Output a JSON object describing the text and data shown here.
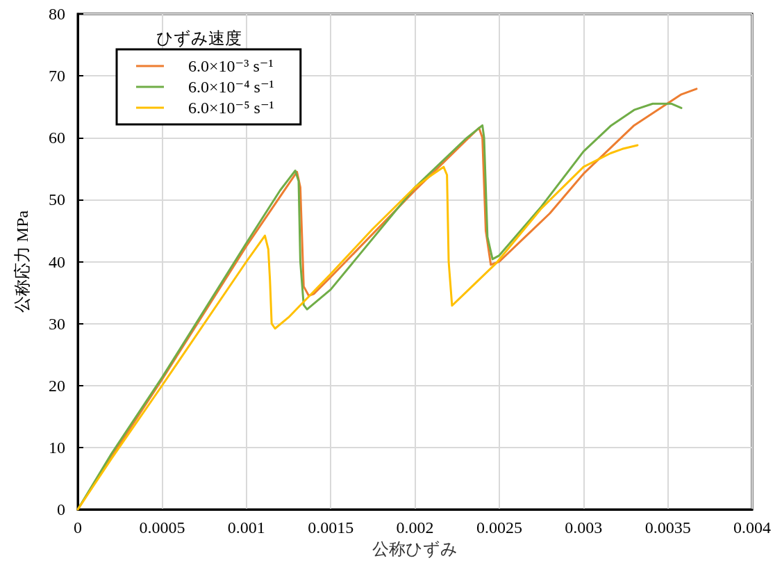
{
  "chart_data": {
    "type": "line",
    "xlabel": "公称ひずみ",
    "ylabel": "公称応力 MPa",
    "legend_title": "ひずみ速度",
    "legend": "top left",
    "grid": true,
    "marker": "none",
    "line_style": "solid",
    "xlim": [
      0,
      0.004
    ],
    "xticks": [
      0,
      0.0005,
      0.001,
      0.0015,
      0.002,
      0.0025,
      0.003,
      0.0035,
      0.004
    ],
    "ylim": [
      0,
      80
    ],
    "yticks": [
      0,
      10,
      20,
      30,
      40,
      50,
      60,
      70,
      80
    ],
    "series": [
      {
        "name": "6.0×10⁻³ s⁻¹",
        "color": "#ed7d31",
        "x": [
          0,
          0.0002,
          0.0005,
          0.001,
          0.0012,
          0.0013,
          0.00132,
          0.00134,
          0.00137,
          0.0014,
          0.0015,
          0.002,
          0.0023,
          0.00238,
          0.0024,
          0.00242,
          0.00245,
          0.0025,
          0.0028,
          0.003,
          0.0033,
          0.00358,
          0.00367
        ],
        "values": [
          0,
          8.5,
          21,
          42.5,
          50.5,
          54.5,
          52,
          36,
          34.5,
          34.8,
          37.5,
          51.5,
          59.5,
          61.6,
          60,
          45,
          39.5,
          40,
          47.8,
          54.2,
          62,
          67,
          67.9
        ]
      },
      {
        "name": "6.0×10⁻⁴ s⁻¹",
        "color": "#70ad47",
        "x": [
          0,
          0.0002,
          0.0005,
          0.001,
          0.0012,
          0.00129,
          0.00131,
          0.00132,
          0.00134,
          0.00136,
          0.0015,
          0.002,
          0.0023,
          0.0024,
          0.00241,
          0.00243,
          0.00246,
          0.0025,
          0.00275,
          0.003,
          0.00316,
          0.0033,
          0.00341,
          0.00352,
          0.00358
        ],
        "values": [
          0,
          9,
          21.3,
          43,
          51.5,
          54.7,
          53,
          40,
          33,
          32.3,
          35.5,
          52,
          59.8,
          62,
          60,
          44,
          40.4,
          41,
          48.9,
          57.8,
          61.9,
          64.5,
          65.5,
          65.5,
          64.8
        ]
      },
      {
        "name": "6.0×10⁻⁵ s⁻¹",
        "color": "#ffc000",
        "x": [
          0,
          0.0002,
          0.0005,
          0.001,
          0.00111,
          0.00113,
          0.00114,
          0.00115,
          0.00117,
          0.00125,
          0.0015,
          0.00175,
          0.002,
          0.0021,
          0.00217,
          0.00219,
          0.0022,
          0.00222,
          0.0023,
          0.00248,
          0.00275,
          0.003,
          0.00316,
          0.00323,
          0.00332
        ],
        "values": [
          0,
          8.2,
          20,
          40,
          44.2,
          42,
          37,
          30,
          29.2,
          31,
          38,
          45.3,
          52,
          54,
          55.3,
          54,
          40,
          32.9,
          35,
          39.7,
          48.6,
          55.3,
          57.5,
          58.2,
          58.8
        ]
      }
    ]
  }
}
